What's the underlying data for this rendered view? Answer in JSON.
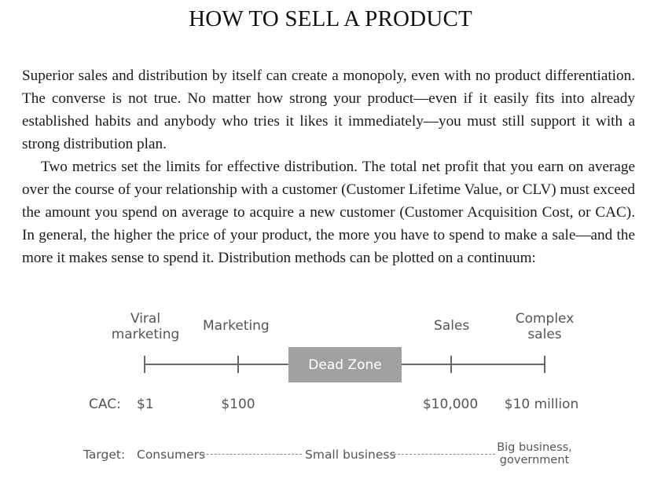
{
  "title": "HOW TO SELL A PRODUCT",
  "paragraphs": [
    "Superior sales and distribution by itself can create a monopoly, even with no product differentiation. The converse is not true. No matter how strong your product—even if it easily fits into already established habits and anybody who tries it likes it immediately—you must still support it with a strong distribution plan.",
    "Two metrics set the limits for effective distribution. The total net profit that you earn on average over the course of your relationship with a customer (Customer Lifetime Value, or CLV) must exceed the amount you spend on average to acquire a new customer (Customer Acquisition Cost, or CAC). In general, the higher the price of your product, the more you have to spend to make a sale—and the more it makes sense to spend it. Distribution methods can be plotted on a continuum:"
  ],
  "diagram": {
    "methods": [
      "Viral marketing",
      "Marketing",
      "Sales",
      "Complex sales"
    ],
    "dead_zone": "Dead Zone",
    "cac_label": "CAC:",
    "cac_values": [
      "$1",
      "$100",
      "$10,000",
      "$10 million"
    ],
    "target_label": "Target:",
    "targets": [
      "Consumers",
      "Small business",
      "Big business, government"
    ]
  }
}
